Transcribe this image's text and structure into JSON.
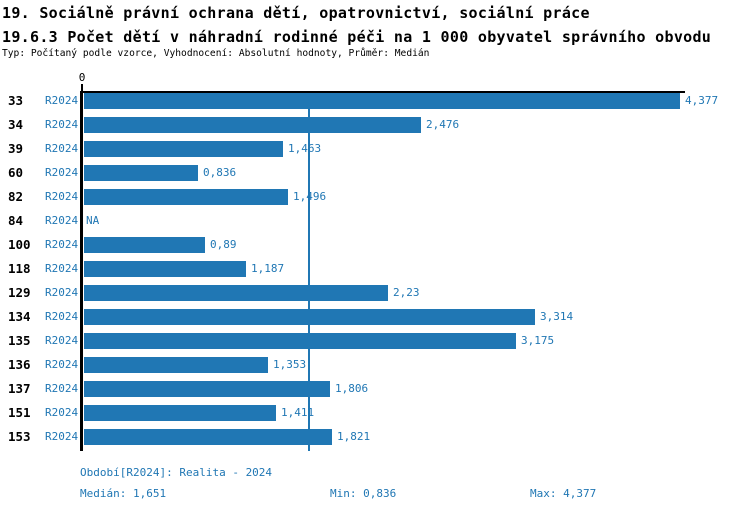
{
  "header": {
    "line1": "19. Sociálně právní ochrana dětí, opatrovnictví, sociální práce",
    "line2": "19.6.3 Počet dětí v náhradní rodinné péči na 1 000 obyvatel správního obvodu",
    "line3": "Typ: Počítaný podle vzorce, Vyhodnocení: Absolutní hodnoty, Průměr: Medián"
  },
  "colors": {
    "bar": "#2077b4",
    "accent_text": "#2077b4",
    "axis": "#000000",
    "title": "#000000"
  },
  "chart_data": {
    "type": "bar",
    "orientation": "horizontal",
    "title": "19.6.3 Počet dětí v náhradní rodinné péči na 1 000 obyvatel správního obvodu",
    "series_label": "R2024",
    "categories": [
      "33",
      "34",
      "39",
      "60",
      "82",
      "84",
      "100",
      "118",
      "129",
      "134",
      "135",
      "136",
      "137",
      "151",
      "153"
    ],
    "values": [
      4.377,
      2.476,
      1.463,
      0.836,
      1.496,
      null,
      0.89,
      1.187,
      2.23,
      3.314,
      3.175,
      1.353,
      1.806,
      1.411,
      1.821
    ],
    "value_labels": [
      "4,377",
      "2,476",
      "1,463",
      "0,836",
      "1,496",
      "NA",
      "0,89",
      "1,187",
      "2,23",
      "3,314",
      "3,175",
      "1,353",
      "1,806",
      "1,411",
      "1,821"
    ],
    "xlim": [
      0,
      4.377
    ],
    "axis_tick_label": "0",
    "median_reference_line": 1.651,
    "grid": false,
    "legend": "none"
  },
  "footer": {
    "period": "Období[R2024]: Realita - 2024",
    "median": "Medián: 1,651",
    "min": "Min: 0,836",
    "max": "Max: 4,377"
  }
}
